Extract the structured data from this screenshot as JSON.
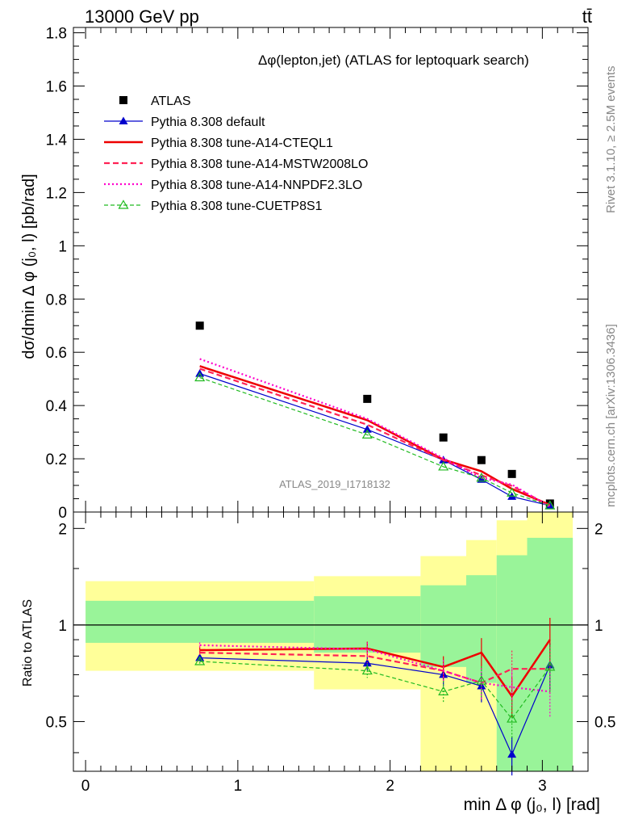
{
  "header": {
    "left": "13000 GeV pp",
    "right": "tt̄"
  },
  "side_labels": {
    "rivet": "Rivet 3.1.10, ≥ 2.5M events",
    "mcplots": "mcplots.cern.ch [arXiv:1306.3436]"
  },
  "watermark": "ATLAS_2019_I1718132",
  "chart_data": [
    {
      "type": "line",
      "title": "Δφ(lepton,jet) (ATLAS for leptoquark search)",
      "ylabel": "dσ/dmin Δ φ (j₀, l) [pb/rad]",
      "xlim": [
        -0.08,
        3.3
      ],
      "ylim": [
        0,
        1.82
      ],
      "yticks": [
        0,
        0.2,
        0.4,
        0.6,
        0.8,
        1,
        1.2,
        1.4,
        1.6,
        1.8
      ],
      "ytick_labels": [
        "0",
        "0.2",
        "0.4",
        "0.6",
        "0.8",
        "1",
        "1.2",
        "1.4",
        "1.6",
        "1.8"
      ],
      "legend_position": "top-left",
      "x": [
        0.75,
        1.85,
        2.35,
        2.6,
        2.8,
        3.05
      ],
      "series": [
        {
          "name": "ATLAS",
          "color": "#000000",
          "values": [
            0.7,
            0.425,
            0.28,
            0.195,
            0.143,
            0.032
          ]
        },
        {
          "name": "Pythia 8.308 default",
          "color": "#0000cc",
          "values": [
            0.52,
            0.31,
            0.195,
            0.122,
            0.058,
            0.024
          ]
        },
        {
          "name": "Pythia 8.308 tune-A14-CTEQL1",
          "color": "#ee0000",
          "values": [
            0.548,
            0.345,
            0.197,
            0.153,
            0.087,
            0.027
          ]
        },
        {
          "name": "Pythia 8.308 tune-A14-MSTW2008LO",
          "color": "#ff2255",
          "values": [
            0.538,
            0.328,
            0.195,
            0.138,
            0.098,
            0.024
          ]
        },
        {
          "name": "Pythia 8.308 tune-A14-NNPDF2.3LO",
          "color": "#ff00cc",
          "values": [
            0.575,
            0.35,
            0.202,
            0.128,
            0.103,
            0.02
          ]
        },
        {
          "name": "Pythia 8.308 tune-CUETP8S1",
          "color": "#22bb22",
          "values": [
            0.505,
            0.29,
            0.17,
            0.128,
            0.072,
            0.024
          ]
        }
      ]
    },
    {
      "type": "line",
      "ylabel": "Ratio to ATLAS",
      "xlabel": "min Δ φ (j₀, l) [rad]",
      "xlim": [
        -0.08,
        3.3
      ],
      "ylim": [
        0.35,
        2.25
      ],
      "xticks": [
        0,
        1,
        2,
        3
      ],
      "xtick_labels": [
        "0",
        "1",
        "2",
        "3"
      ],
      "yticks": [
        0.5,
        1,
        2
      ],
      "ytick_labels": [
        "0.5",
        "1",
        "2"
      ],
      "x": [
        0.75,
        1.85,
        2.35,
        2.6,
        2.8,
        3.05
      ],
      "uncertainty_bands": {
        "bin_edges": [
          0,
          1.5,
          2.2,
          2.5,
          2.7,
          2.9,
          3.2
        ],
        "inner_low": [
          0.88,
          0.82,
          0.74,
          0.66,
          0.35,
          0.35
        ],
        "inner_high": [
          1.19,
          1.23,
          1.33,
          1.43,
          1.65,
          1.87
        ],
        "outer_low": [
          0.72,
          0.63,
          0.35,
          0.35,
          0.35,
          0.35
        ],
        "outer_high": [
          1.37,
          1.42,
          1.64,
          1.84,
          2.12,
          2.25
        ],
        "inner_color": "#99f499",
        "outer_color": "#ffff99"
      },
      "series": [
        {
          "name": "Pythia 8.308 default",
          "color": "#0000cc",
          "values": [
            0.79,
            0.76,
            0.7,
            0.645,
            0.395,
            0.75
          ]
        },
        {
          "name": "Pythia 8.308 tune-A14-CTEQL1",
          "color": "#ee0000",
          "values": [
            0.835,
            0.845,
            0.74,
            0.82,
            0.6,
            0.9
          ]
        },
        {
          "name": "Pythia 8.308 tune-A14-MSTW2008LO",
          "color": "#ff2255",
          "values": [
            0.82,
            0.8,
            0.72,
            0.66,
            0.73,
            0.73
          ]
        },
        {
          "name": "Pythia 8.308 tune-A14-NNPDF2.3LO",
          "color": "#ff00cc",
          "values": [
            0.865,
            0.84,
            0.72,
            0.66,
            0.64,
            0.62
          ]
        },
        {
          "name": "Pythia 8.308 tune-CUETP8S1",
          "color": "#22bb22",
          "values": [
            0.77,
            0.72,
            0.62,
            0.67,
            0.51,
            0.74
          ]
        }
      ]
    }
  ]
}
